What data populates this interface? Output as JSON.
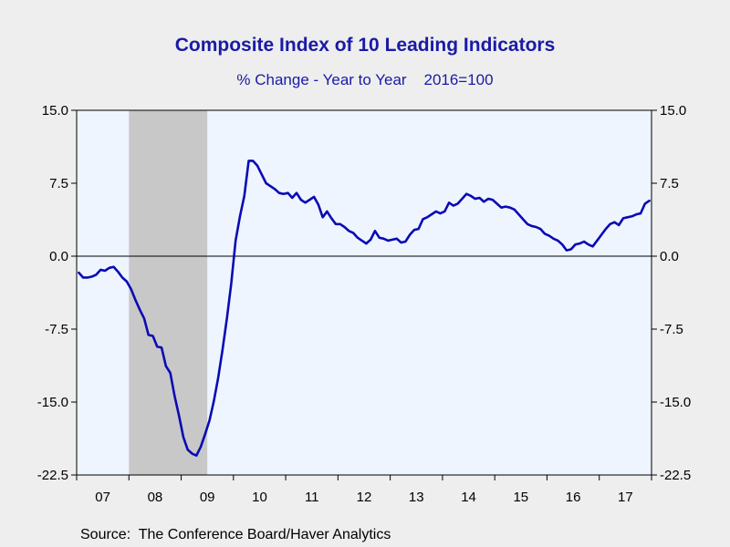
{
  "title": "Composite Index of 10 Leading Indicators",
  "subtitle": "% Change - Year to Year    2016=100",
  "source": "Source:  The Conference Board/Haver Analytics",
  "colors": {
    "background": "#eeeeee",
    "plot_background": "#eef5ff",
    "recession_shade": "#c8c8c8",
    "line": "#0a0ab4",
    "title": "#1a1aa6"
  },
  "chart_data": {
    "type": "line",
    "title": "Composite Index of 10 Leading Indicators",
    "subtitle": "% Change - Year to Year    2016=100",
    "xlabel": "",
    "ylabel": "",
    "ylim": [
      -22.5,
      15.0
    ],
    "y_ticks": [
      15.0,
      7.5,
      0.0,
      -7.5,
      -15.0,
      -22.5
    ],
    "y_tick_labels": [
      "15.0",
      "7.5",
      "0.0",
      "-7.5",
      "-15.0",
      "-22.5"
    ],
    "xlim": [
      "2007-01",
      "2017-12"
    ],
    "x_tick_labels": [
      "07",
      "08",
      "09",
      "10",
      "11",
      "12",
      "13",
      "14",
      "15",
      "16",
      "17"
    ],
    "dual_y_axis": true,
    "zero_line": true,
    "grid": false,
    "recession_shading": [
      {
        "start": "2008-01",
        "end": "2009-06"
      }
    ],
    "series": [
      {
        "x_start": "2007-01",
        "frequency": "monthly",
        "values": [
          -1.7,
          -2.2,
          -2.2,
          -2.1,
          -1.9,
          -1.4,
          -1.5,
          -1.2,
          -1.1,
          -1.6,
          -2.2,
          -2.6,
          -3.4,
          -4.5,
          -5.5,
          -6.4,
          -8.1,
          -8.2,
          -9.3,
          -9.4,
          -11.3,
          -12.0,
          -14.4,
          -16.4,
          -18.6,
          -19.9,
          -20.3,
          -20.5,
          -19.6,
          -18.3,
          -16.9,
          -14.9,
          -12.5,
          -9.6,
          -6.4,
          -2.8,
          1.6,
          4.1,
          6.2,
          9.8,
          9.8,
          9.3,
          8.4,
          7.5,
          7.2,
          6.9,
          6.5,
          6.4,
          6.5,
          6.0,
          6.5,
          5.8,
          5.5,
          5.8,
          6.1,
          5.3,
          4.0,
          4.6,
          3.9,
          3.3,
          3.3,
          3.0,
          2.6,
          2.4,
          1.9,
          1.6,
          1.3,
          1.7,
          2.6,
          1.9,
          1.8,
          1.6,
          1.7,
          1.8,
          1.4,
          1.5,
          2.2,
          2.7,
          2.8,
          3.8,
          4.0,
          4.3,
          4.6,
          4.4,
          4.6,
          5.5,
          5.2,
          5.4,
          5.9,
          6.4,
          6.2,
          5.9,
          6.0,
          5.6,
          5.9,
          5.8,
          5.4,
          5.0,
          5.1,
          5.0,
          4.8,
          4.3,
          3.8,
          3.3,
          3.1,
          3.0,
          2.8,
          2.3,
          2.1,
          1.8,
          1.6,
          1.2,
          0.6,
          0.7,
          1.2,
          1.3,
          1.5,
          1.2,
          1.0,
          1.6,
          2.2,
          2.8,
          3.3,
          3.5,
          3.2,
          3.9,
          4.0,
          4.1,
          4.3,
          4.4,
          5.4,
          5.7
        ]
      }
    ]
  }
}
